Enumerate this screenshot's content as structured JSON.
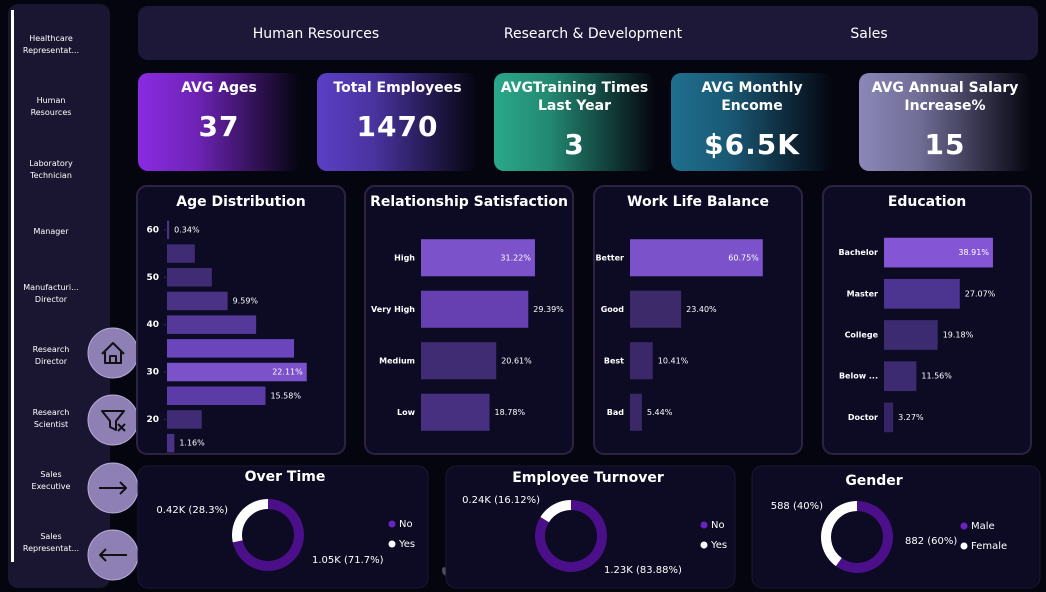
{
  "sidebar": {
    "items": [
      "Healthcare Representat...",
      "Human Resources",
      "Laboratory Technician",
      "Manager",
      "Manufacturi... Director",
      "Research Director",
      "Research Scientist",
      "Sales Executive",
      "Sales Representat..."
    ]
  },
  "tabs": [
    "Human Resources",
    "Research & Development",
    "Sales"
  ],
  "kpis": [
    {
      "label": "AVG Ages",
      "value": "37"
    },
    {
      "label": "Total Employees",
      "value": "1470"
    },
    {
      "label": "AVGTraining Times Last Year",
      "value": "3"
    },
    {
      "label": "AVG Monthly Encome",
      "value": "$6.5K"
    },
    {
      "label": "AVG Annual Salary Increase%",
      "value": "15"
    }
  ],
  "watermark": "خمسات",
  "chart_data": [
    {
      "type": "hbar",
      "title": "Age Distribution",
      "y": [
        60,
        55,
        50,
        45,
        40,
        35,
        30,
        25,
        20,
        15
      ],
      "values": [
        0.34,
        4.4,
        7.1,
        9.59,
        14.1,
        20.1,
        22.11,
        15.58,
        5.5,
        1.16
      ],
      "value_labels": [
        "0.34%",
        null,
        null,
        "9.59%",
        null,
        null,
        "22.11%",
        "15.58%",
        null,
        "1.16%"
      ],
      "colors": [
        "#4a3385",
        "#3f2c74",
        "#3f2c74",
        "#4a3385",
        "#55399a",
        "#6a45bb",
        "#7b52c9",
        "#5b3ca6",
        "#3f2c74",
        "#4a3385"
      ],
      "ylim": [
        12.5,
        62.5
      ],
      "yticks": [
        20,
        30,
        40,
        50,
        60
      ],
      "xlim": [
        0,
        25
      ]
    },
    {
      "type": "hbar",
      "title": "Relationship Satisfaction",
      "categories": [
        "High",
        "Very High",
        "Medium",
        "Low"
      ],
      "values": [
        31.22,
        29.39,
        20.61,
        18.78
      ],
      "value_labels": [
        "31.22%",
        "29.39%",
        "20.61%",
        "18.78%"
      ],
      "colors": [
        "#7b52c9",
        "#6640b0",
        "#3f2c72",
        "#46307f"
      ],
      "xlim": [
        0,
        40
      ]
    },
    {
      "type": "hbar",
      "title": "Work Life Balance",
      "categories": [
        "Better",
        "Good",
        "Best",
        "Bad"
      ],
      "values": [
        60.75,
        23.4,
        10.41,
        5.44
      ],
      "value_labels": [
        "60.75%",
        "23.40%",
        "10.41%",
        "5.44%"
      ],
      "colors": [
        "#7b52c9",
        "#3c2a6a",
        "#3a2868",
        "#3a2868"
      ],
      "xlim": [
        0,
        70
      ]
    },
    {
      "type": "hbar",
      "title": "Education",
      "categories": [
        "Bachelor",
        "Master",
        "College",
        "Below ...",
        "Doctor"
      ],
      "values": [
        38.91,
        27.07,
        19.18,
        11.56,
        3.27
      ],
      "value_labels": [
        "38.91%",
        "27.07%",
        "19.18%",
        "11.56%",
        "3.27%"
      ],
      "colors": [
        "#8456d6",
        "#4b3590",
        "#3d2b72",
        "#3d2b72",
        "#352565"
      ],
      "xlim": [
        0,
        50
      ]
    },
    {
      "type": "donut",
      "title": "Over Time",
      "categories": [
        "No",
        "Yes"
      ],
      "values": [
        1054,
        416
      ],
      "value_labels": [
        "1.05K (71.7%)",
        "0.42K (28.3%)"
      ],
      "colors": [
        "#4b0f8a",
        "#ffffff"
      ]
    },
    {
      "type": "donut",
      "title": "Employee Turnover",
      "categories": [
        "No",
        "Yes"
      ],
      "values": [
        1233,
        237
      ],
      "value_labels": [
        "1.23K (83.88%)",
        "0.24K (16.12%)"
      ],
      "colors": [
        "#4b0f8a",
        "#ffffff"
      ]
    },
    {
      "type": "donut",
      "title": "Gender",
      "categories": [
        "Male",
        "Female"
      ],
      "values": [
        882,
        588
      ],
      "value_labels": [
        "882 (60%)",
        "588 (40%)"
      ],
      "colors": [
        "#4b0f8a",
        "#ffffff"
      ]
    }
  ]
}
